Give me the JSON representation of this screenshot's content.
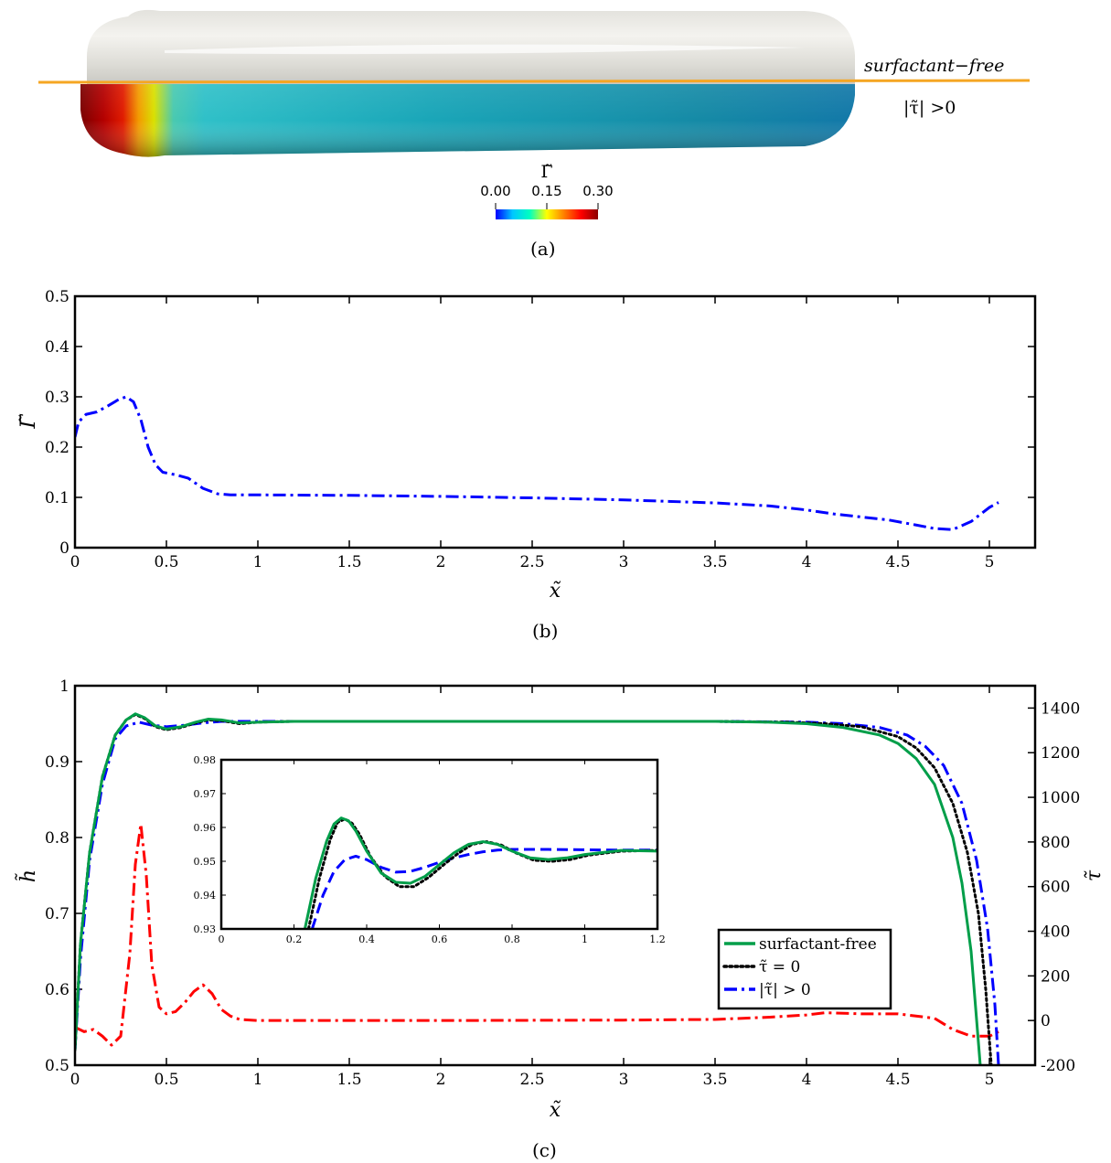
{
  "panel_a": {
    "label_top": "surfactant−free",
    "label_bottom": "|τ̃| >0",
    "colorbar_title": "Γ̃",
    "colorbar_ticks": [
      "0.00",
      "0.15",
      "0.30"
    ],
    "colorbar_range": [
      0,
      0.3
    ],
    "colormap": [
      "#0000ff",
      "#00c8ff",
      "#00ffc0",
      "#ffff00",
      "#ff8000",
      "#ff0000",
      "#8b0000"
    ],
    "divider_color": "#f5a623",
    "caption": "(a)"
  },
  "panel_b_caption": "(b)",
  "panel_c_caption": "(c)",
  "chart_data": [
    {
      "type": "line",
      "panel": "b",
      "xlabel": "x̃",
      "ylabel": "Γ̃",
      "xlim": [
        0,
        5.25
      ],
      "ylim": [
        0,
        0.5
      ],
      "xticks": [
        0,
        0.5,
        1,
        1.5,
        2,
        2.5,
        3,
        3.5,
        4,
        4.5,
        5
      ],
      "xtick_labels": [
        "0",
        "0.5",
        "1",
        "1.5",
        "2",
        "2.5",
        "3",
        "3.5",
        "4",
        "4.5",
        "5"
      ],
      "yticks": [
        0,
        0.1,
        0.2,
        0.3,
        0.4,
        0.5
      ],
      "ytick_labels": [
        "0",
        "0.1",
        "0.2",
        "0.3",
        "0.4",
        "0.5"
      ],
      "series": [
        {
          "color": "#0000ff",
          "style": "dashdot",
          "x": [
            0,
            0.02,
            0.06,
            0.12,
            0.18,
            0.24,
            0.28,
            0.32,
            0.36,
            0.4,
            0.44,
            0.48,
            0.55,
            0.62,
            0.7,
            0.78,
            0.85,
            1.0,
            1.5,
            2.0,
            2.5,
            3.0,
            3.5,
            3.8,
            4.0,
            4.15,
            4.3,
            4.45,
            4.6,
            4.7,
            4.8,
            4.9,
            5.0,
            5.05
          ],
          "y": [
            0.22,
            0.25,
            0.265,
            0.27,
            0.282,
            0.295,
            0.3,
            0.29,
            0.255,
            0.2,
            0.165,
            0.15,
            0.145,
            0.138,
            0.118,
            0.107,
            0.105,
            0.105,
            0.104,
            0.102,
            0.099,
            0.095,
            0.089,
            0.083,
            0.075,
            0.067,
            0.061,
            0.055,
            0.045,
            0.038,
            0.036,
            0.052,
            0.08,
            0.09
          ]
        }
      ]
    },
    {
      "type": "line",
      "panel": "c",
      "xlabel": "x̃",
      "ylabel": "h̃",
      "ylabel_right": "τ̃",
      "xlim": [
        0,
        5.25
      ],
      "ylim": [
        0.5,
        1
      ],
      "y2lim": [
        -200,
        1500
      ],
      "xticks": [
        0,
        0.5,
        1,
        1.5,
        2,
        2.5,
        3,
        3.5,
        4,
        4.5,
        5
      ],
      "xtick_labels": [
        "0",
        "0.5",
        "1",
        "1.5",
        "2",
        "2.5",
        "3",
        "3.5",
        "4",
        "4.5",
        "5"
      ],
      "yticks": [
        0.5,
        0.6,
        0.7,
        0.8,
        0.9,
        1
      ],
      "ytick_labels": [
        "0.5",
        "0.6",
        "0.7",
        "0.8",
        "0.9",
        "1"
      ],
      "y2ticks": [
        -200,
        0,
        200,
        400,
        600,
        800,
        1000,
        1200,
        1400
      ],
      "y2tick_labels": [
        "-200",
        "0",
        "200",
        "400",
        "600",
        "800",
        "1000",
        "1200",
        "1400"
      ],
      "legend": {
        "position": "lower-right",
        "entries": [
          "surfactant-free",
          "τ̃ = 0",
          "|τ̃| > 0"
        ]
      },
      "series": [
        {
          "legend_index": 0,
          "axis": "left",
          "color": "#009e49",
          "style": "solid",
          "x": [
            0,
            0.03,
            0.08,
            0.15,
            0.22,
            0.28,
            0.33,
            0.38,
            0.44,
            0.5,
            0.58,
            0.66,
            0.73,
            0.8,
            0.9,
            1.0,
            1.2,
            2.0,
            3.0,
            3.5,
            3.8,
            4.0,
            4.2,
            4.4,
            4.5,
            4.6,
            4.7,
            4.8,
            4.85,
            4.9,
            4.93,
            4.95
          ],
          "y": [
            0.52,
            0.66,
            0.78,
            0.88,
            0.935,
            0.955,
            0.963,
            0.958,
            0.947,
            0.943,
            0.946,
            0.952,
            0.956,
            0.955,
            0.951,
            0.952,
            0.953,
            0.953,
            0.953,
            0.953,
            0.952,
            0.95,
            0.945,
            0.935,
            0.924,
            0.904,
            0.87,
            0.8,
            0.74,
            0.65,
            0.56,
            0.5
          ]
        },
        {
          "legend_index": 1,
          "axis": "left",
          "color": "#000000",
          "style": "dotted",
          "x": [
            0,
            0.03,
            0.08,
            0.15,
            0.22,
            0.28,
            0.33,
            0.38,
            0.44,
            0.5,
            0.58,
            0.66,
            0.73,
            0.8,
            0.9,
            1.0,
            1.2,
            2.0,
            3.0,
            3.5,
            3.9,
            4.1,
            4.3,
            4.5,
            4.6,
            4.7,
            4.8,
            4.88,
            4.94,
            4.98,
            5.01
          ],
          "y": [
            0.52,
            0.66,
            0.78,
            0.88,
            0.935,
            0.955,
            0.962,
            0.957,
            0.946,
            0.942,
            0.945,
            0.951,
            0.955,
            0.954,
            0.95,
            0.952,
            0.953,
            0.953,
            0.953,
            0.953,
            0.952,
            0.95,
            0.946,
            0.933,
            0.918,
            0.892,
            0.845,
            0.78,
            0.7,
            0.6,
            0.5
          ]
        },
        {
          "legend_index": 2,
          "axis": "left",
          "color": "#0000ff",
          "style": "dashdot",
          "x": [
            0,
            0.03,
            0.08,
            0.15,
            0.22,
            0.28,
            0.35,
            0.42,
            0.5,
            0.6,
            0.7,
            0.8,
            0.9,
            1.0,
            1.2,
            2.0,
            3.0,
            3.5,
            4.0,
            4.2,
            4.4,
            4.55,
            4.65,
            4.75,
            4.85,
            4.93,
            4.99,
            5.03,
            5.05
          ],
          "y": [
            0.52,
            0.64,
            0.77,
            0.87,
            0.93,
            0.947,
            0.952,
            0.948,
            0.946,
            0.948,
            0.951,
            0.953,
            0.953,
            0.953,
            0.953,
            0.953,
            0.953,
            0.953,
            0.952,
            0.95,
            0.945,
            0.935,
            0.92,
            0.895,
            0.845,
            0.77,
            0.68,
            0.58,
            0.5
          ]
        },
        {
          "axis": "right",
          "color": "#ff0000",
          "style": "dashdot",
          "x": [
            0,
            0.05,
            0.1,
            0.15,
            0.2,
            0.25,
            0.3,
            0.33,
            0.36,
            0.39,
            0.42,
            0.46,
            0.5,
            0.55,
            0.6,
            0.65,
            0.7,
            0.75,
            0.8,
            0.85,
            0.9,
            1.0,
            1.5,
            2.0,
            3.0,
            3.5,
            3.8,
            4.0,
            4.1,
            4.3,
            4.5,
            4.7,
            4.8,
            4.9,
            5.0,
            5.05
          ],
          "y": [
            -30,
            -50,
            -40,
            -70,
            -110,
            -70,
            300,
            700,
            880,
            650,
            250,
            60,
            30,
            40,
            80,
            130,
            160,
            120,
            50,
            20,
            5,
            0,
            0,
            0,
            2,
            5,
            15,
            25,
            35,
            30,
            30,
            10,
            -40,
            -70,
            -70,
            -50
          ]
        }
      ]
    },
    {
      "type": "line",
      "panel": "c-inset",
      "xlim": [
        0,
        1.2
      ],
      "ylim": [
        0.93,
        0.98
      ],
      "xticks": [
        0,
        0.2,
        0.4,
        0.6,
        0.8,
        1,
        1.2
      ],
      "xtick_labels": [
        "0",
        "0.2",
        "0.4",
        "0.6",
        "0.8",
        "1",
        "1.2"
      ],
      "yticks": [
        0.93,
        0.94,
        0.95,
        0.96,
        0.97,
        0.98
      ],
      "ytick_labels": [
        "0.93",
        "0.94",
        "0.95",
        "0.96",
        "0.97",
        "0.98"
      ],
      "series": [
        {
          "color": "#009e49",
          "style": "solid",
          "x": [
            0.23,
            0.26,
            0.29,
            0.31,
            0.33,
            0.35,
            0.37,
            0.4,
            0.44,
            0.48,
            0.52,
            0.56,
            0.6,
            0.64,
            0.68,
            0.72,
            0.76,
            0.8,
            0.85,
            0.9,
            0.95,
            1.0,
            1.1,
            1.2
          ],
          "y": [
            0.93,
            0.945,
            0.956,
            0.961,
            0.9628,
            0.962,
            0.959,
            0.953,
            0.9465,
            0.9438,
            0.9435,
            0.9455,
            0.949,
            0.9525,
            0.955,
            0.9558,
            0.955,
            0.953,
            0.951,
            0.9505,
            0.951,
            0.952,
            0.9532,
            0.953
          ]
        },
        {
          "color": "#000000",
          "style": "dotted",
          "x": [
            0.24,
            0.27,
            0.3,
            0.32,
            0.34,
            0.36,
            0.38,
            0.41,
            0.45,
            0.49,
            0.53,
            0.57,
            0.61,
            0.65,
            0.69,
            0.73,
            0.77,
            0.81,
            0.86,
            0.91,
            0.96,
            1.01,
            1.1,
            1.2
          ],
          "y": [
            0.93,
            0.945,
            0.9565,
            0.9615,
            0.9625,
            0.9612,
            0.958,
            0.9515,
            0.9455,
            0.9425,
            0.9425,
            0.9452,
            0.9488,
            0.9522,
            0.955,
            0.9558,
            0.9548,
            0.9525,
            0.9503,
            0.95,
            0.9505,
            0.9518,
            0.953,
            0.9532
          ]
        },
        {
          "color": "#0000ff",
          "style": "dashed",
          "x": [
            0.25,
            0.28,
            0.31,
            0.34,
            0.37,
            0.4,
            0.44,
            0.48,
            0.52,
            0.56,
            0.6,
            0.64,
            0.68,
            0.72,
            0.76,
            0.8,
            0.9,
            1.0,
            1.1,
            1.2
          ],
          "y": [
            0.93,
            0.94,
            0.947,
            0.9505,
            0.9515,
            0.9505,
            0.9482,
            0.9468,
            0.947,
            0.9482,
            0.9497,
            0.951,
            0.952,
            0.9528,
            0.9533,
            0.9535,
            0.9535,
            0.9534,
            0.9533,
            0.9533
          ]
        }
      ]
    }
  ]
}
